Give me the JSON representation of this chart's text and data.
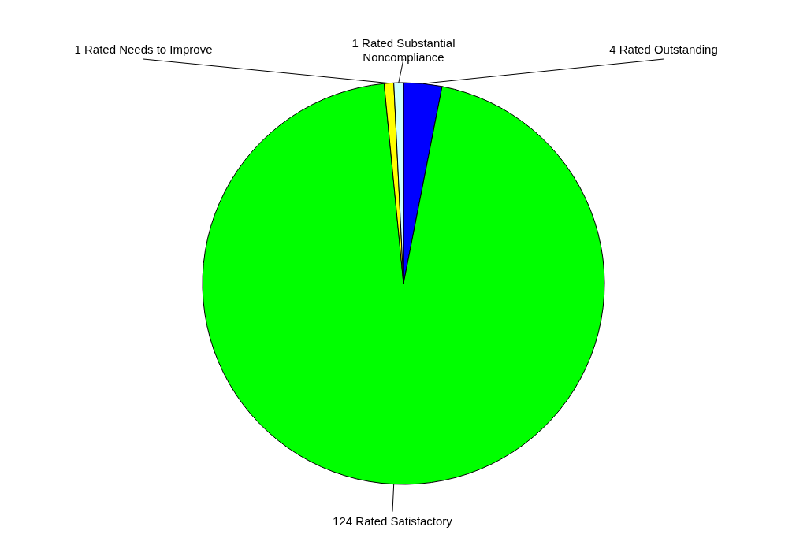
{
  "chart_data": {
    "type": "pie",
    "categories": [
      "4 Rated Outstanding",
      "124 Rated Satisfactory",
      "1 Rated Needs to Improve",
      "1 Rated Substantial Noncompliance"
    ],
    "values": [
      4,
      124,
      1,
      1
    ],
    "colors": [
      "#0000ff",
      "#00ff00",
      "#ffff00",
      "#ccffff"
    ]
  }
}
